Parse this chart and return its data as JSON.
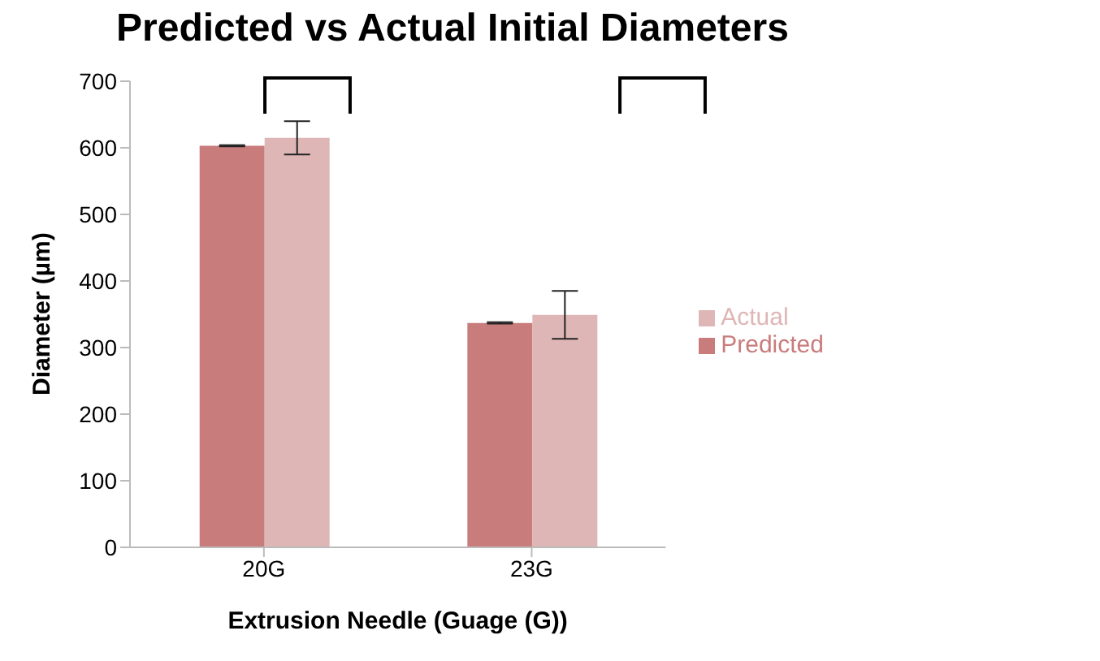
{
  "chart_data": {
    "type": "bar",
    "title": "Predicted vs Actual Initial Diameters",
    "xlabel": "Extrusion Needle (Guage (G))",
    "ylabel": "Diameter (µm)",
    "categories": [
      "20G",
      "23G"
    ],
    "series": [
      {
        "name": "Predicted",
        "color": "#c97c7c",
        "values": [
          603,
          337
        ],
        "errors": [
          1,
          1
        ]
      },
      {
        "name": "Actual",
        "color": "#dfb6b6",
        "values": [
          615,
          349
        ],
        "errors": [
          25,
          36
        ]
      }
    ],
    "ylim": [
      0,
      700
    ],
    "yticks": [
      0,
      100,
      200,
      300,
      400,
      500,
      600,
      700
    ],
    "grid": false,
    "legend": "right"
  }
}
